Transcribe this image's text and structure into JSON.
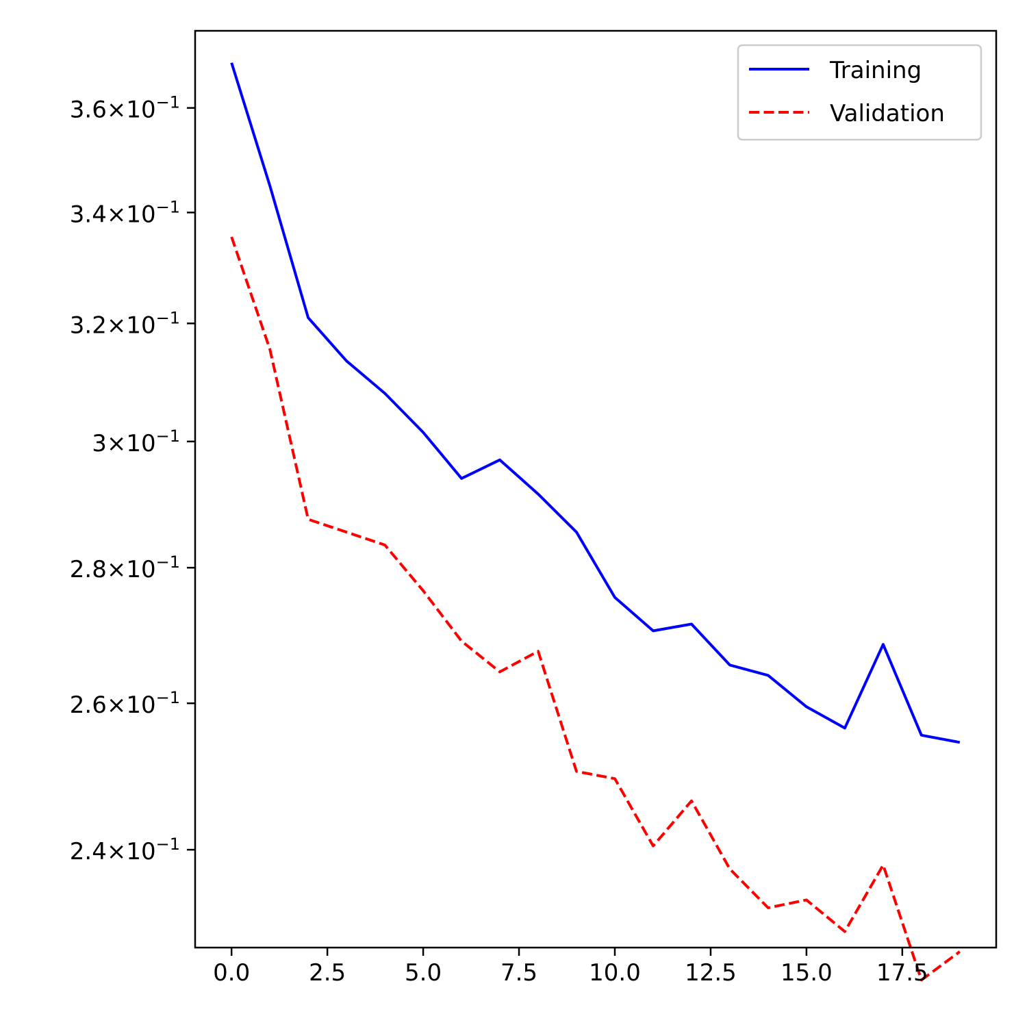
{
  "chart_data": {
    "type": "line",
    "title": "",
    "xlabel": "",
    "ylabel": "",
    "yscale": "log",
    "xlim": [
      -0.95,
      19.95
    ],
    "ylim": [
      0.2275,
      0.3755
    ],
    "grid": false,
    "legend_position": "top-right",
    "xticks": [
      0.0,
      2.5,
      5.0,
      7.5,
      10.0,
      12.5,
      15.0,
      17.5
    ],
    "xtick_labels": [
      "0.0",
      "2.5",
      "5.0",
      "7.5",
      "10.0",
      "12.5",
      "15.0",
      "17.5"
    ],
    "yticks": [
      {
        "value": 0.36,
        "mantissa": "3.6",
        "exponent": "−1"
      },
      {
        "value": 0.34,
        "mantissa": "3.4",
        "exponent": "−1"
      },
      {
        "value": 0.32,
        "mantissa": "3.2",
        "exponent": "−1"
      },
      {
        "value": 0.3,
        "mantissa": "3",
        "exponent": "−1"
      },
      {
        "value": 0.28,
        "mantissa": "2.8",
        "exponent": "−1"
      },
      {
        "value": 0.26,
        "mantissa": "2.6",
        "exponent": "−1"
      },
      {
        "value": 0.24,
        "mantissa": "2.4",
        "exponent": "−1"
      }
    ],
    "x": [
      0,
      1,
      2,
      3,
      4,
      5,
      6,
      7,
      8,
      9,
      10,
      11,
      12,
      13,
      14,
      15,
      16,
      17,
      18,
      19
    ],
    "series": [
      {
        "name": "Training",
        "color": "#0000ff",
        "style": "solid",
        "values": [
          0.369,
          0.345,
          0.321,
          0.3135,
          0.308,
          0.3015,
          0.294,
          0.297,
          0.2915,
          0.2855,
          0.2755,
          0.2705,
          0.2715,
          0.2655,
          0.264,
          0.2595,
          0.2565,
          0.2685,
          0.2555,
          0.2545
        ]
      },
      {
        "name": "Validation",
        "color": "#ff0000",
        "style": "dashed",
        "values": [
          0.3355,
          0.3155,
          0.2875,
          0.2855,
          0.2835,
          0.2765,
          0.269,
          0.2645,
          0.2675,
          0.2505,
          0.2495,
          0.2405,
          0.2465,
          0.2375,
          0.2325,
          0.2335,
          0.2295,
          0.238,
          0.2235,
          0.227
        ]
      }
    ]
  }
}
